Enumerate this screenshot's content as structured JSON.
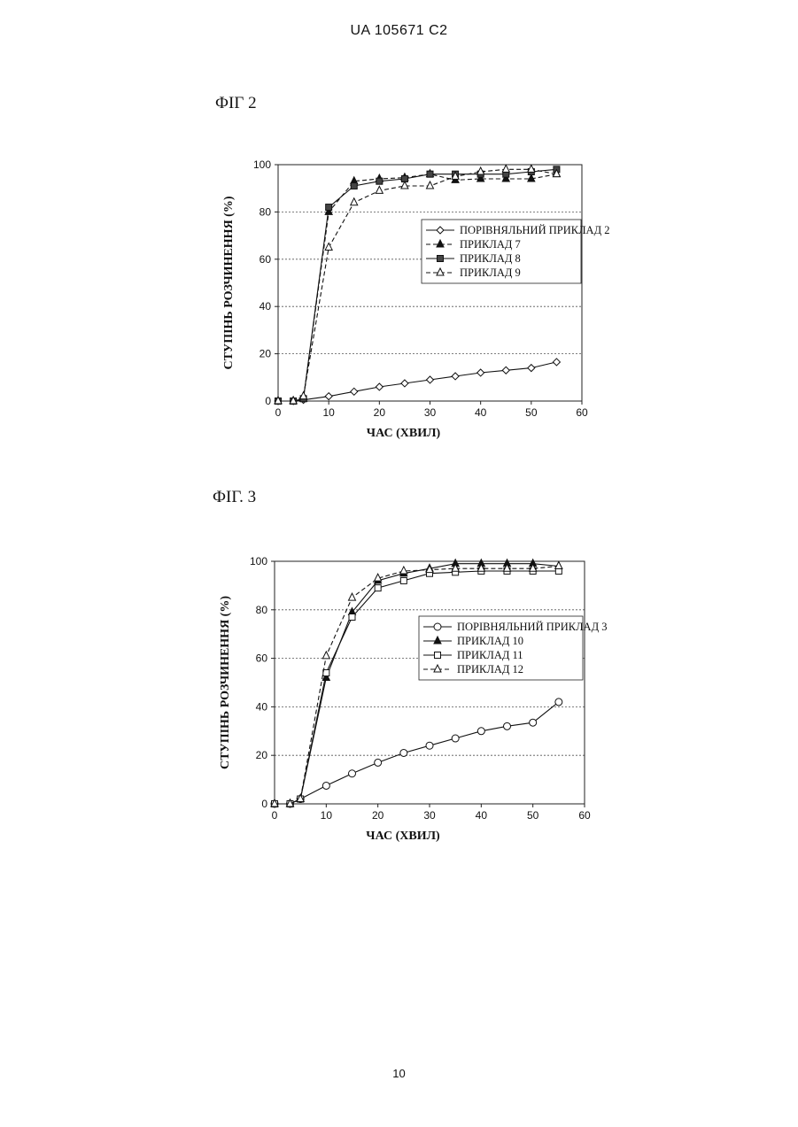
{
  "header": {
    "doc_id": "UA   105671   C2"
  },
  "figures": [
    {
      "label": "ФІГ 2"
    },
    {
      "label": "ФІГ. 3"
    }
  ],
  "page_number": "10",
  "chart_data": [
    {
      "type": "line",
      "title": "ФІГ 2",
      "xlabel": "ЧАС (ХВИЛ)",
      "ylabel": "СТУПІНЬ РОЗЧИНЕННЯ (%)",
      "xlim": [
        0,
        60
      ],
      "ylim": [
        0,
        100
      ],
      "xticks": [
        0,
        10,
        20,
        30,
        40,
        50,
        60
      ],
      "yticks": [
        0,
        20,
        40,
        60,
        80,
        100
      ],
      "grid": "horizontal dashed",
      "legend_position": "right-middle",
      "series": [
        {
          "name": "ПОРІВНЯЛЬНИЙ ПРИКЛАД 2",
          "marker": "diamond",
          "dash": "solid",
          "x": [
            0,
            3,
            5,
            10,
            15,
            20,
            25,
            30,
            35,
            40,
            45,
            50,
            55
          ],
          "y": [
            0,
            0,
            0.5,
            2,
            4,
            6,
            7.5,
            9,
            10.5,
            12,
            13,
            14,
            16.5
          ]
        },
        {
          "name": "ПРИКЛАД 7",
          "marker": "triangle-filled",
          "dash": "dashed",
          "x": [
            0,
            3,
            5,
            10,
            15,
            20,
            25,
            30,
            35,
            40,
            45,
            50,
            55
          ],
          "y": [
            0,
            0,
            1,
            80,
            93,
            94,
            94.5,
            96,
            93.5,
            94,
            94,
            94,
            96
          ]
        },
        {
          "name": "ПРИКЛАД 8",
          "marker": "square-filled",
          "dash": "solid",
          "x": [
            0,
            3,
            5,
            10,
            15,
            20,
            25,
            30,
            35,
            40,
            45,
            50,
            55
          ],
          "y": [
            0,
            0,
            1,
            82,
            91,
            93,
            94,
            96,
            96,
            96,
            96,
            97,
            98
          ]
        },
        {
          "name": "ПРИКЛАД 9",
          "marker": "triangle-open",
          "dash": "dashed",
          "x": [
            0,
            3,
            5,
            10,
            15,
            20,
            25,
            30,
            35,
            40,
            45,
            50,
            55
          ],
          "y": [
            0,
            0,
            2,
            65,
            84,
            89,
            91,
            91,
            95,
            97,
            98,
            98,
            96
          ]
        }
      ]
    },
    {
      "type": "line",
      "title": "ФІГ. 3",
      "xlabel": "ЧАС (ХВИЛ)",
      "ylabel": "СТУПІНЬ РОЗЧИНЕННЯ (%)",
      "xlim": [
        0,
        60
      ],
      "ylim": [
        0,
        100
      ],
      "xticks": [
        0,
        10,
        20,
        30,
        40,
        50,
        60
      ],
      "yticks": [
        0,
        20,
        40,
        60,
        80,
        100
      ],
      "grid": "horizontal dashed",
      "legend_position": "right-middle",
      "series": [
        {
          "name": "ПОРІВНЯЛЬНИЙ ПРИКЛАД 3",
          "marker": "circle",
          "dash": "solid",
          "x": [
            0,
            3,
            5,
            10,
            15,
            20,
            25,
            30,
            35,
            40,
            45,
            50,
            55
          ],
          "y": [
            0,
            0,
            2,
            7.5,
            12.5,
            17,
            21,
            24,
            27,
            30,
            32,
            33.5,
            42
          ]
        },
        {
          "name": "ПРИКЛАД 10",
          "marker": "triangle-filled",
          "dash": "solid",
          "x": [
            0,
            3,
            5,
            10,
            15,
            20,
            25,
            30,
            35,
            40,
            45,
            50,
            55
          ],
          "y": [
            0,
            0,
            2,
            52,
            79,
            92,
            95,
            97,
            99,
            99,
            99,
            99,
            98
          ]
        },
        {
          "name": "ПРИКЛАД 11",
          "marker": "square-open",
          "dash": "solid",
          "x": [
            0,
            3,
            5,
            10,
            15,
            20,
            25,
            30,
            35,
            40,
            45,
            50,
            55
          ],
          "y": [
            0,
            0,
            2,
            54,
            77,
            89,
            92,
            95,
            95.5,
            96,
            96,
            96,
            96
          ]
        },
        {
          "name": "ПРИКЛАД 12",
          "marker": "triangle-open",
          "dash": "dashed",
          "x": [
            0,
            3,
            5,
            10,
            15,
            20,
            25,
            30,
            35,
            40,
            45,
            50,
            55
          ],
          "y": [
            0,
            0,
            2,
            61,
            85,
            93,
            96,
            96.5,
            97,
            97,
            97,
            97,
            98
          ]
        }
      ]
    }
  ]
}
